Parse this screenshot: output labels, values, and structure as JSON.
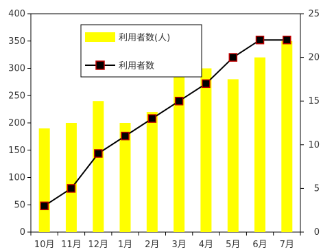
{
  "chart_data": {
    "type": "bar+line",
    "categories": [
      "10月",
      "11月",
      "12月",
      "1月",
      "2月",
      "3月",
      "4月",
      "5月",
      "6月",
      "7月"
    ],
    "series": [
      {
        "name": "利用者数(人)",
        "kind": "bar",
        "axis": "left",
        "color": "#ffff00",
        "values": [
          190,
          200,
          240,
          200,
          220,
          290,
          300,
          280,
          320,
          350
        ]
      },
      {
        "name": "利用者数",
        "kind": "line",
        "axis": "right",
        "color": "#000000",
        "marker_color": "#c00000",
        "values": [
          3,
          5,
          9,
          11,
          13,
          15,
          17,
          20,
          22,
          22
        ]
      }
    ],
    "y_left": {
      "min": 0,
      "max": 400,
      "step": 50,
      "ticks": [
        "0",
        "50",
        "100",
        "150",
        "200",
        "250",
        "300",
        "350",
        "400"
      ]
    },
    "y_right": {
      "min": 0,
      "max": 25,
      "step": 5,
      "ticks": [
        "0",
        "5",
        "10",
        "15",
        "20",
        "25"
      ]
    },
    "title": "",
    "xlabel": "",
    "ylabel": "",
    "grid": false,
    "legend_position": "top-center"
  }
}
